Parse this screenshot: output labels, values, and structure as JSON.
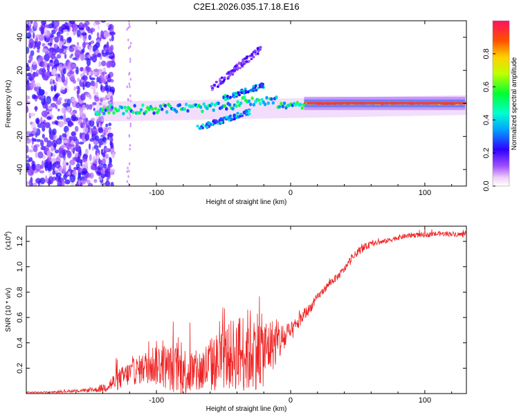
{
  "page_title": "C2E1.2026.035.17.18.E16",
  "chart_data": [
    {
      "type": "heatmap",
      "xlabel": "Height of straight line (km)",
      "ylabel": "Frequency (Hz)",
      "xlim": [
        -197,
        131
      ],
      "ylim": [
        -50,
        50
      ],
      "xticks": [
        -100,
        0,
        100
      ],
      "yticks": [
        -40,
        -20,
        0,
        20,
        40
      ],
      "colorbar": {
        "label": "Normalized spectral amplitude",
        "range": [
          0,
          1
        ],
        "ticks": [
          0.0,
          0.2,
          0.4,
          0.6,
          0.8
        ],
        "tick_labels": [
          "0.0",
          "0.2",
          "0.4",
          "0.6",
          "0.8"
        ]
      },
      "features": [
        {
          "name": "noise region",
          "x_range": [
            -197,
            -140
          ],
          "y_range": [
            -50,
            50
          ],
          "amplitude": 0.15
        },
        {
          "name": "main band",
          "x_range": [
            -145,
            131
          ],
          "y_at_start": -4,
          "y_at_end": 0,
          "amplitude_at_start": 0.4,
          "amplitude_at_end": 0.9
        },
        {
          "name": "upper branch",
          "x_range": [
            -60,
            -20
          ],
          "y_range": [
            8,
            35
          ],
          "amplitude": 0.15
        },
        {
          "name": "lower branch",
          "x_range": [
            -70,
            -30
          ],
          "y_range": [
            -15,
            -5
          ],
          "amplitude": 0.3
        }
      ]
    },
    {
      "type": "line",
      "xlabel": "Height of straight line (km)",
      "ylabel": "SNR (10 * v/v)",
      "y_multiplier": "(x10",
      "y_multiplier_exponent": "4",
      "y_multiplier_close": ")",
      "xlim": [
        -197,
        131
      ],
      "ylim": [
        0,
        1.32
      ],
      "xticks": [
        -100,
        0,
        100
      ],
      "yticks": [
        0.2,
        0.4,
        0.6,
        0.8,
        1.0,
        1.2
      ],
      "ytick_labels": [
        "0.2",
        "0.4",
        "0.6",
        "0.8",
        "1.0",
        "1.2"
      ],
      "series": [
        {
          "name": "SNR",
          "color": "#ee2222",
          "x": [
            -197,
            -180,
            -160,
            -145,
            -138,
            -130,
            -120,
            -110,
            -100,
            -90,
            -80,
            -70,
            -60,
            -50,
            -40,
            -30,
            -25,
            -20,
            -15,
            -10,
            -5,
            0,
            5,
            10,
            15,
            20,
            25,
            30,
            35,
            40,
            45,
            50,
            55,
            60,
            70,
            80,
            90,
            100,
            110,
            120,
            131
          ],
          "values": [
            0.01,
            0.01,
            0.02,
            0.03,
            0.05,
            0.1,
            0.16,
            0.2,
            0.24,
            0.2,
            0.18,
            0.16,
            0.22,
            0.28,
            0.32,
            0.34,
            0.36,
            0.33,
            0.38,
            0.4,
            0.43,
            0.48,
            0.55,
            0.62,
            0.68,
            0.76,
            0.82,
            0.88,
            0.92,
            0.98,
            1.05,
            1.12,
            1.15,
            1.18,
            1.2,
            1.23,
            1.25,
            1.25,
            1.26,
            1.26,
            1.25
          ],
          "noise_amplitude": [
            0.005,
            0.005,
            0.01,
            0.02,
            0.04,
            0.08,
            0.1,
            0.12,
            0.18,
            0.18,
            0.2,
            0.18,
            0.22,
            0.25,
            0.3,
            0.35,
            0.32,
            0.28,
            0.22,
            0.18,
            0.12,
            0.08,
            0.06,
            0.05,
            0.04,
            0.03,
            0.03,
            0.03,
            0.03,
            0.03,
            0.03,
            0.03,
            0.03,
            0.02,
            0.02,
            0.02,
            0.02,
            0.02,
            0.02,
            0.02,
            0.02
          ]
        }
      ]
    }
  ]
}
